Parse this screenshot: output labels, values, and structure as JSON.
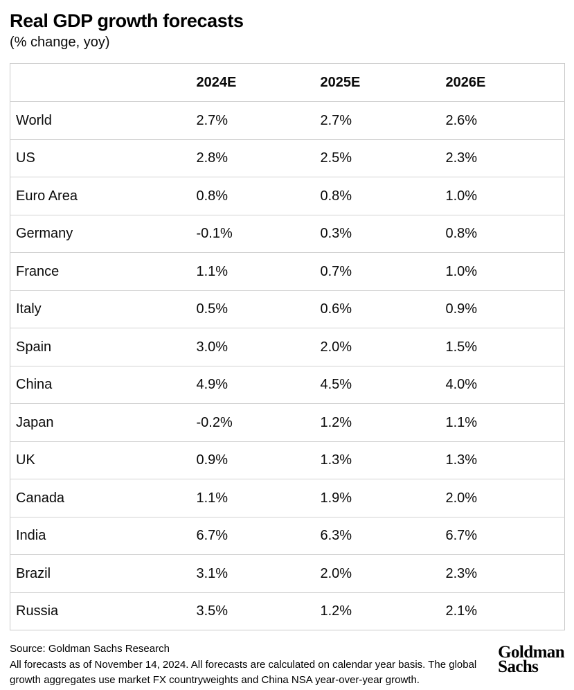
{
  "title": "Real GDP growth forecasts",
  "subtitle": "(% change, yoy)",
  "table": {
    "columns": [
      "",
      "2024E",
      "2025E",
      "2026E"
    ],
    "rows": [
      {
        "label": "World",
        "values": [
          "2.7%",
          "2.7%",
          "2.6%"
        ]
      },
      {
        "label": "US",
        "values": [
          "2.8%",
          "2.5%",
          "2.3%"
        ]
      },
      {
        "label": "Euro Area",
        "values": [
          "0.8%",
          "0.8%",
          "1.0%"
        ]
      },
      {
        "label": "Germany",
        "values": [
          "-0.1%",
          "0.3%",
          "0.8%"
        ]
      },
      {
        "label": "France",
        "values": [
          "1.1%",
          "0.7%",
          "1.0%"
        ]
      },
      {
        "label": "Italy",
        "values": [
          "0.5%",
          "0.6%",
          "0.9%"
        ]
      },
      {
        "label": "Spain",
        "values": [
          "3.0%",
          "2.0%",
          "1.5%"
        ]
      },
      {
        "label": "China",
        "values": [
          "4.9%",
          "4.5%",
          "4.0%"
        ]
      },
      {
        "label": "Japan",
        "values": [
          "-0.2%",
          "1.2%",
          "1.1%"
        ]
      },
      {
        "label": "UK",
        "values": [
          "0.9%",
          "1.3%",
          "1.3%"
        ]
      },
      {
        "label": "Canada",
        "values": [
          "1.1%",
          "1.9%",
          "2.0%"
        ]
      },
      {
        "label": "India",
        "values": [
          "6.7%",
          "6.3%",
          "6.7%"
        ]
      },
      {
        "label": "Brazil",
        "values": [
          "3.1%",
          "2.0%",
          "2.3%"
        ]
      },
      {
        "label": "Russia",
        "values": [
          "3.5%",
          "1.2%",
          "2.1%"
        ]
      }
    ]
  },
  "footer": {
    "source": "Source: Goldman Sachs Research",
    "note": "All forecasts as of November 14, 2024. All forecasts are calculated on calendar year basis. The global growth aggregates use market FX countryweights and China NSA year-over-year growth.",
    "logo_line1": "Goldman",
    "logo_line2": "Sachs"
  },
  "colors": {
    "background": "#ffffff",
    "text": "#0a0a0a",
    "table_border": "#c9c9c9",
    "row_divider": "#d2d2d2"
  },
  "chart_data": {
    "type": "table",
    "title": "Real GDP growth forecasts",
    "subtitle": "(% change, yoy)",
    "unit": "% change, yoy",
    "categories": [
      "World",
      "US",
      "Euro Area",
      "Germany",
      "France",
      "Italy",
      "Spain",
      "China",
      "Japan",
      "UK",
      "Canada",
      "India",
      "Brazil",
      "Russia"
    ],
    "series": [
      {
        "name": "2024E",
        "values": [
          2.7,
          2.8,
          0.8,
          -0.1,
          1.1,
          0.5,
          3.0,
          4.9,
          -0.2,
          0.9,
          1.1,
          6.7,
          3.1,
          3.5
        ]
      },
      {
        "name": "2025E",
        "values": [
          2.7,
          2.5,
          0.8,
          0.3,
          0.7,
          0.6,
          2.0,
          4.5,
          1.2,
          1.3,
          1.9,
          6.3,
          2.0,
          1.2
        ]
      },
      {
        "name": "2026E",
        "values": [
          2.6,
          2.3,
          1.0,
          0.8,
          1.0,
          0.9,
          1.5,
          4.0,
          1.1,
          1.3,
          2.0,
          6.7,
          2.3,
          2.1
        ]
      }
    ],
    "source": "Goldman Sachs Research",
    "as_of": "November 14, 2024"
  }
}
